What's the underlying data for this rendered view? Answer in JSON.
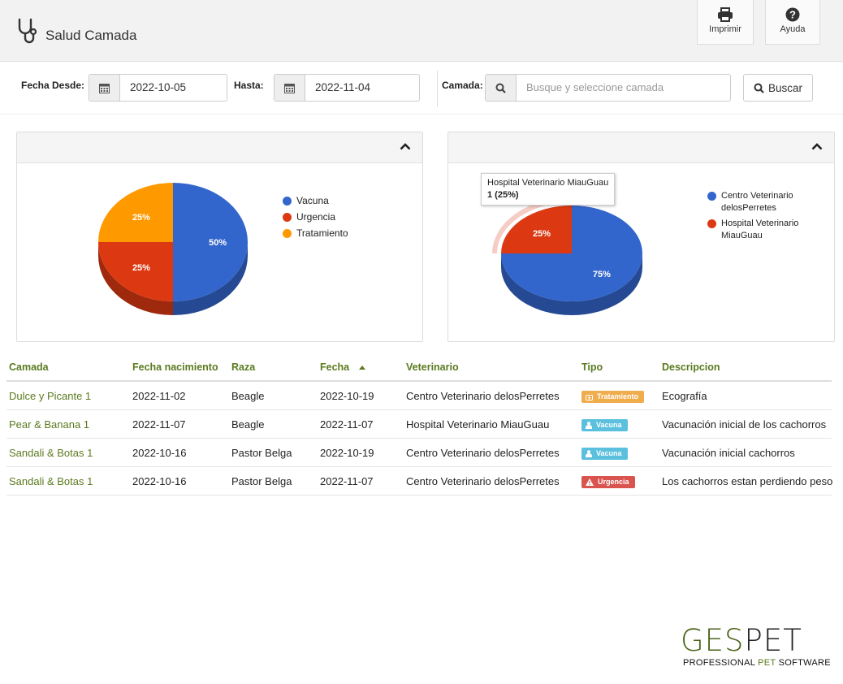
{
  "header": {
    "title": "Salud Camada",
    "print_label": "Imprimir",
    "help_label": "Ayuda"
  },
  "filters": {
    "from_label": "Fecha Desde:",
    "from_value": "2022-10-05",
    "to_label": "Hasta:",
    "to_value": "2022-11-04",
    "camada_label": "Camada:",
    "camada_placeholder": "Busque y seleccione camada",
    "search_label": "Buscar"
  },
  "chart_data": [
    {
      "type": "pie",
      "title": "",
      "labels": [
        "Vacuna",
        "Urgencia",
        "Tratamiento"
      ],
      "values": [
        50,
        25,
        25
      ],
      "colors": [
        "#3366cc",
        "#dc3912",
        "#ff9900"
      ],
      "legend": "right"
    },
    {
      "type": "pie",
      "title": "",
      "labels": [
        "Centro Veterinario delosPerretes",
        "Hospital Veterinario MiauGuau"
      ],
      "values": [
        75,
        25
      ],
      "colors": [
        "#3366cc",
        "#dc3912"
      ],
      "legend": "right",
      "tooltip": {
        "title": "Hospital Veterinario MiauGuau",
        "value": "1 (25%)"
      }
    }
  ],
  "table": {
    "columns": [
      "Camada",
      "Fecha nacimiento",
      "Raza",
      "Fecha",
      "Veterinario",
      "Tipo",
      "Descripcion"
    ],
    "rows": [
      {
        "camada": "Dulce y Picante 1",
        "nacimiento": "2022-11-02",
        "raza": "Beagle",
        "fecha": "2022-10-19",
        "veterinario": "Centro Veterinario delosPerretes",
        "tipo": "Tratamiento",
        "descripcion": "Ecografía"
      },
      {
        "camada": "Pear & Banana 1",
        "nacimiento": "2022-11-07",
        "raza": "Beagle",
        "fecha": "2022-11-07",
        "veterinario": "Hospital Veterinario MiauGuau",
        "tipo": "Vacuna",
        "descripcion": "Vacunación inicial de los cachorros"
      },
      {
        "camada": "Sandali & Botas 1",
        "nacimiento": "2022-10-16",
        "raza": "Pastor Belga",
        "fecha": "2022-10-19",
        "veterinario": "Centro Veterinario delosPerretes",
        "tipo": "Vacuna",
        "descripcion": "Vacunación inicial cachorros"
      },
      {
        "camada": "Sandali & Botas 1",
        "nacimiento": "2022-10-16",
        "raza": "Pastor Belga",
        "fecha": "2022-11-07",
        "veterinario": "Centro Veterinario delosPerretes",
        "tipo": "Urgencia",
        "descripcion": "Los cachorros estan perdiendo peso"
      }
    ]
  },
  "logo": {
    "ges": "GES",
    "pet": "PET",
    "tag_a": "PROFESSIONAL ",
    "tag_b": "PET",
    "tag_c": " SOFTWARE"
  }
}
